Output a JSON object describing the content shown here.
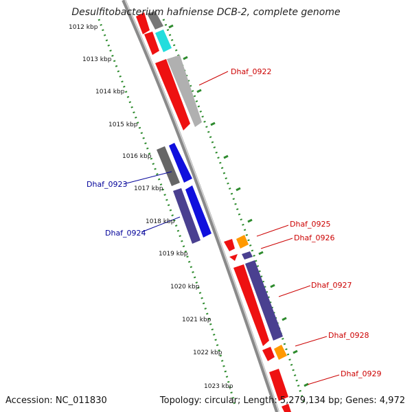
{
  "title": "Desulfitobacterium hafniense DCB-2, complete genome",
  "accession": "Accession: NC_011830",
  "summary": "Topology: circular; Length: 5,279,134 bp; Genes: 4,972",
  "ticks": [
    "1012 kbp",
    "1013 kbp",
    "1014 kbp",
    "1015 kbp",
    "1016 kbp",
    "1017 kbp",
    "1018 kbp",
    "1019 kbp",
    "1020 kbp",
    "1021 kbp",
    "1022 kbp",
    "1023 kbp"
  ],
  "colors": {
    "backbone": "#8a8a8a",
    "dotted_track": "#2e8b2e",
    "label_forward": "#cc0000",
    "label_reverse": "#000099",
    "red": "#ee1111",
    "gray": "#b0b0b0",
    "darkgray": "#666666",
    "cyan": "#22dddd",
    "blue": "#1010dd",
    "slate": "#4a4090",
    "orange": "#ff9900"
  },
  "gene_labels": {
    "Dhaf_0922": "Dhaf_0922",
    "Dhaf_0923": "Dhaf_0923",
    "Dhaf_0924": "Dhaf_0924",
    "Dhaf_0925": "Dhaf_0925",
    "Dhaf_0926": "Dhaf_0926",
    "Dhaf_0927": "Dhaf_0927",
    "Dhaf_0928": "Dhaf_0928",
    "Dhaf_0929": "Dhaf_0929"
  }
}
